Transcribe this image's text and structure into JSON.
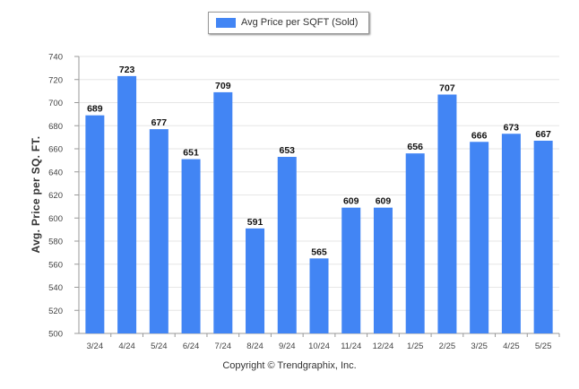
{
  "legend": {
    "label": "Avg Price per SQFT (Sold)"
  },
  "footer": {
    "text": "Copyright © Trendgraphix, Inc."
  },
  "colors": {
    "bar": "#4285f4",
    "grid": "#e6e6e6",
    "axis": "#999999"
  },
  "chart_data": {
    "type": "bar",
    "title": "",
    "xlabel": "",
    "ylabel": "Avg. Price per SQ. FT.",
    "ylim": [
      500,
      740
    ],
    "yticks": [
      500,
      520,
      540,
      560,
      580,
      600,
      620,
      640,
      660,
      680,
      700,
      720,
      740
    ],
    "grid": true,
    "legend_position": "top-center",
    "categories": [
      "3/24",
      "4/24",
      "5/24",
      "6/24",
      "7/24",
      "8/24",
      "9/24",
      "10/24",
      "11/24",
      "12/24",
      "1/25",
      "2/25",
      "3/25",
      "4/25",
      "5/25"
    ],
    "series": [
      {
        "name": "Avg Price per SQFT (Sold)",
        "values": [
          689,
          723,
          677,
          651,
          709,
          591,
          653,
          565,
          609,
          609,
          656,
          707,
          666,
          673,
          667
        ]
      }
    ]
  }
}
